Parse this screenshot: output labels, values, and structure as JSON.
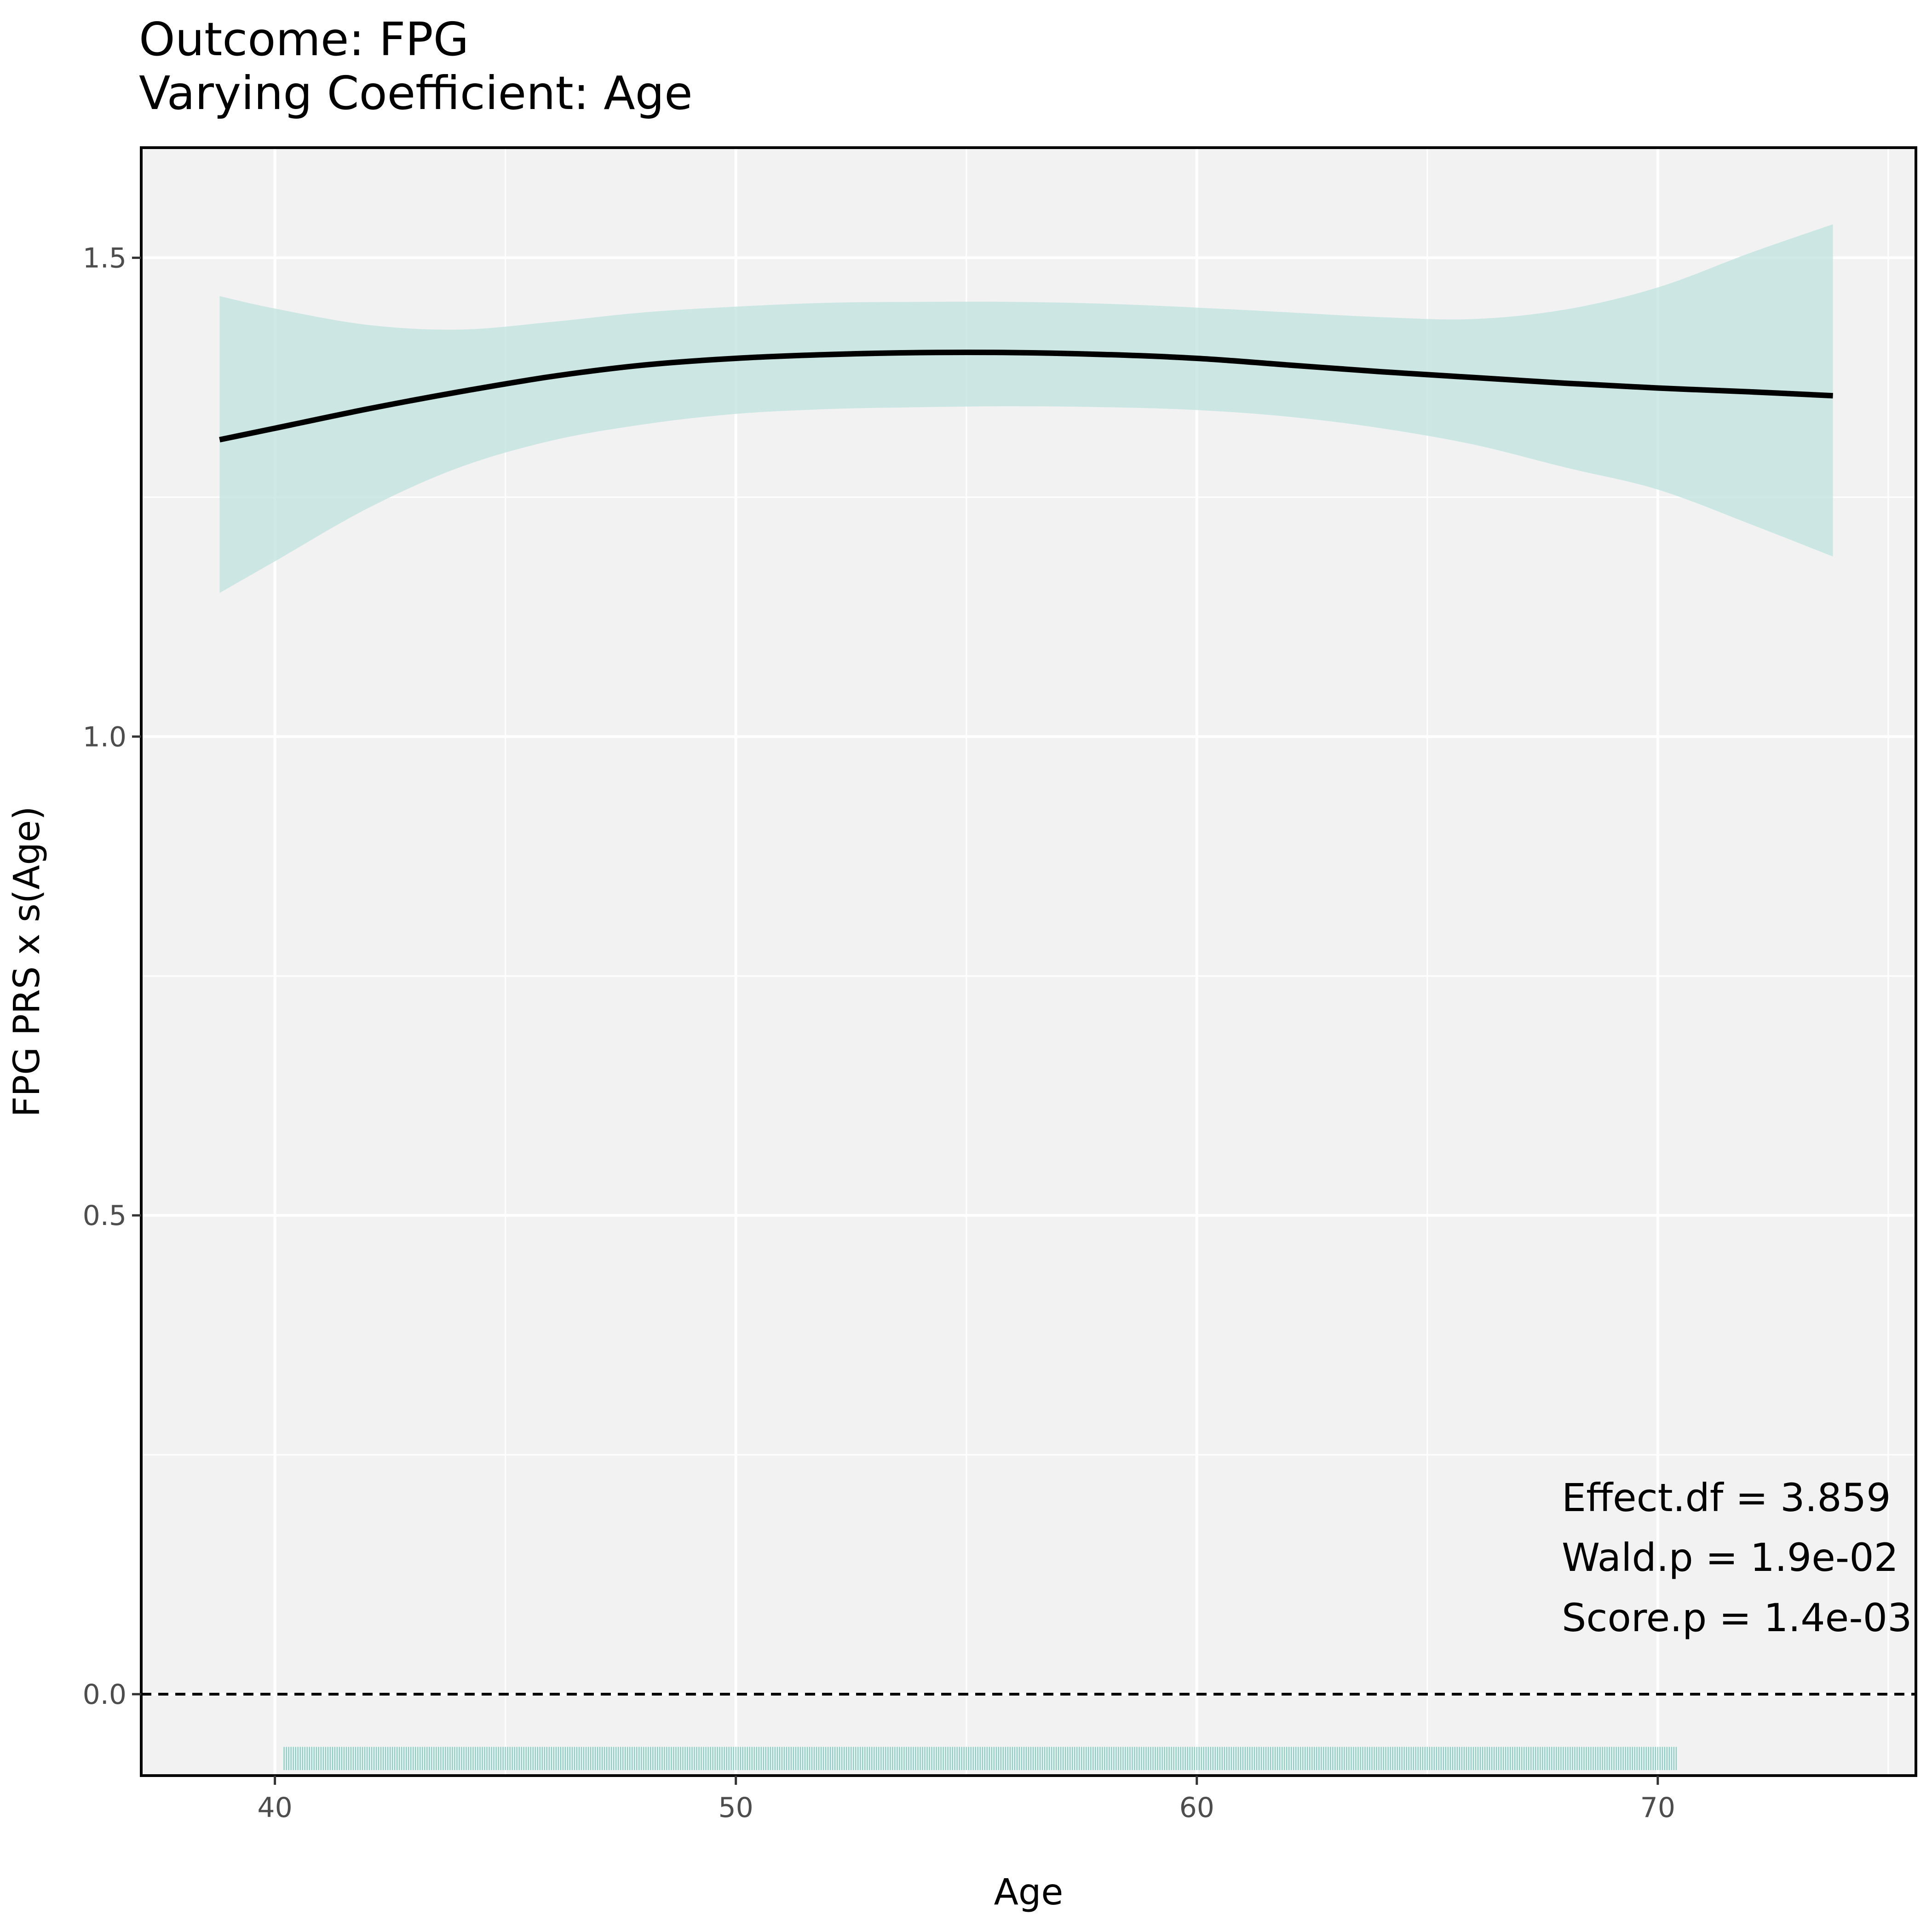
{
  "chart_data": {
    "type": "line",
    "title": "Outcome: FPG",
    "subtitle": "Varying Coefficient: Age",
    "xlabel": "Age",
    "ylabel": "FPG PRS x s(Age)",
    "xlim": [
      37.1,
      75.6
    ],
    "ylim": [
      -0.085,
      1.615
    ],
    "x_ticks": [
      40,
      50,
      60,
      70
    ],
    "x_tick_labels": [
      "40",
      "50",
      "60",
      "70"
    ],
    "y_ticks": [
      0.0,
      0.5,
      1.0,
      1.5
    ],
    "y_tick_labels": [
      "0.0",
      "0.5",
      "1.0",
      "1.5"
    ],
    "x_minor_gridlines": [
      45,
      55,
      65,
      75
    ],
    "y_minor_gridlines": [
      0.25,
      0.75,
      1.25
    ],
    "grid": true,
    "reference_line": {
      "y": 0,
      "style": "dashed",
      "color": "#000000"
    },
    "series": [
      {
        "x": [
          38.8,
          40,
          42,
          44,
          46,
          48,
          50,
          52,
          54,
          56,
          58,
          60,
          62,
          64,
          66,
          68,
          70,
          72,
          73.8
        ],
        "y": [
          1.31,
          1.322,
          1.342,
          1.36,
          1.376,
          1.388,
          1.395,
          1.399,
          1.401,
          1.401,
          1.399,
          1.395,
          1.388,
          1.381,
          1.375,
          1.369,
          1.364,
          1.36,
          1.356
        ],
        "lower": [
          1.15,
          1.183,
          1.238,
          1.281,
          1.309,
          1.326,
          1.337,
          1.342,
          1.344,
          1.345,
          1.344,
          1.341,
          1.334,
          1.322,
          1.305,
          1.281,
          1.258,
          1.222,
          1.188
        ],
        "upper": [
          1.46,
          1.447,
          1.43,
          1.425,
          1.433,
          1.443,
          1.449,
          1.453,
          1.454,
          1.454,
          1.452,
          1.448,
          1.443,
          1.438,
          1.436,
          1.446,
          1.469,
          1.505,
          1.535
        ],
        "line_color": "#000000",
        "band_color": "#bfe3dd"
      }
    ],
    "rug": {
      "x_start": 40.2,
      "x_end": 70.4,
      "color": "#6cc5b8"
    },
    "annotations": {
      "effect_df": "Effect.df = 3.859",
      "wald_p": "Wald.p = 1.9e-02",
      "score_p": "Score.p = 1.4e-03"
    },
    "colors": {
      "panel_background": "#f2f2f2",
      "gridline": "#ffffff",
      "panel_border": "#000000"
    }
  }
}
